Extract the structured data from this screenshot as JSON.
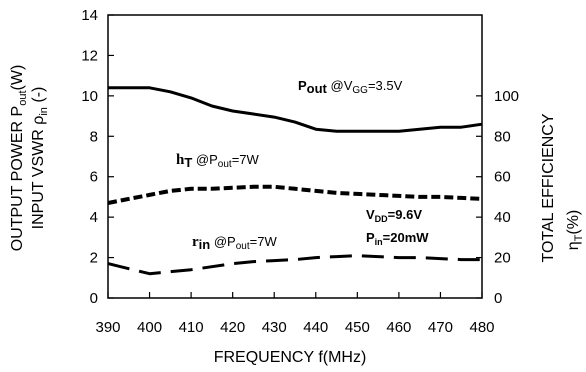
{
  "chart_data": {
    "type": "line",
    "x_axis": {
      "label": "FREQUENCY f(MHz)",
      "range": [
        390,
        480
      ],
      "ticks": [
        390,
        400,
        410,
        420,
        430,
        440,
        450,
        460,
        470,
        480
      ]
    },
    "y_left": {
      "label_line1": "OUTPUT POWER P",
      "label_line1_sub": "out",
      "label_line1_tail": "(W)",
      "label_line2": "INPUT VSWR ",
      "label_line2_rho": "ρ",
      "label_line2_sub": "in",
      "label_line2_tail": " (-)",
      "range": [
        0,
        14
      ],
      "ticks": [
        0,
        2,
        4,
        6,
        8,
        10,
        12,
        14
      ]
    },
    "y_right": {
      "label": "TOTAL EFFICIENCY",
      "label_eta": "η",
      "label_eta_sub": "T",
      "label_eta_tail": "(%)",
      "range": [
        0,
        140
      ],
      "ticks": [
        0,
        20,
        40,
        60,
        80,
        100
      ]
    },
    "grid": false,
    "series": [
      {
        "name": "Pout @VGG=3.5V",
        "axis": "left",
        "style": "solid",
        "x": [
          390,
          395,
          400,
          405,
          410,
          415,
          420,
          425,
          430,
          435,
          440,
          445,
          450,
          455,
          460,
          465,
          470,
          475,
          480
        ],
        "y": [
          10.4,
          10.4,
          10.4,
          10.2,
          9.9,
          9.5,
          9.25,
          9.1,
          8.95,
          8.7,
          8.35,
          8.25,
          8.25,
          8.25,
          8.25,
          8.35,
          8.45,
          8.45,
          8.6
        ]
      },
      {
        "name": "ηT @Pout=7W",
        "axis": "right",
        "style": "dotted",
        "x": [
          390,
          395,
          400,
          405,
          410,
          415,
          420,
          425,
          430,
          435,
          440,
          445,
          450,
          455,
          460,
          465,
          470,
          475,
          480
        ],
        "y": [
          47,
          49,
          51,
          53,
          54,
          54,
          54.5,
          55,
          55,
          54,
          53,
          52,
          51.5,
          51,
          50.5,
          50,
          50,
          49.5,
          49
        ]
      },
      {
        "name": "ρin @Pout=7W",
        "axis": "left",
        "style": "dashed",
        "x": [
          390,
          395,
          400,
          405,
          410,
          415,
          420,
          425,
          430,
          435,
          440,
          445,
          450,
          455,
          460,
          465,
          470,
          475,
          480
        ],
        "y": [
          1.7,
          1.45,
          1.2,
          1.3,
          1.4,
          1.55,
          1.7,
          1.8,
          1.85,
          1.9,
          2.0,
          2.05,
          2.1,
          2.05,
          2.0,
          2.0,
          1.95,
          1.9,
          1.9
        ]
      }
    ],
    "annotations": {
      "pout_main": "P",
      "pout_sub": "out",
      "pout_cond1": " @V",
      "pout_cond_sub": "GG",
      "pout_cond2": "=3.5V",
      "eta_main": "h",
      "eta_sub": "T",
      "eta_cond1": " @P",
      "eta_cond_sub": "out",
      "eta_cond2": "=7W",
      "rho_main": "r",
      "rho_sub": "in",
      "rho_cond1": " @P",
      "rho_cond_sub": "out",
      "rho_cond2": "=7W",
      "vdd_main": "V",
      "vdd_sub": "DD",
      "vdd_val": "=9.6V",
      "pin_main": "P",
      "pin_sub": "in",
      "pin_val": "=20mW"
    }
  }
}
